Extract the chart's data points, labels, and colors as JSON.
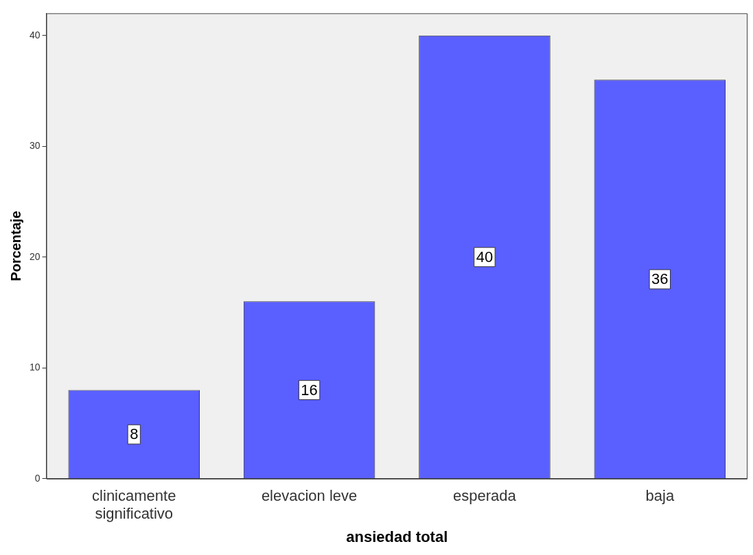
{
  "chart_data": {
    "type": "bar",
    "xlabel": "ansiedad total",
    "ylabel": "Porcentaje",
    "categories": [
      "clinicamente significativo",
      "elevacion leve",
      "esperada",
      "baja"
    ],
    "values": [
      8,
      16,
      40,
      36
    ],
    "color": "#5a5fff",
    "ylim": [
      0,
      42
    ],
    "yticks": [
      0,
      10,
      20,
      30,
      40
    ],
    "grid": false,
    "data_labels": true,
    "legend": false
  }
}
